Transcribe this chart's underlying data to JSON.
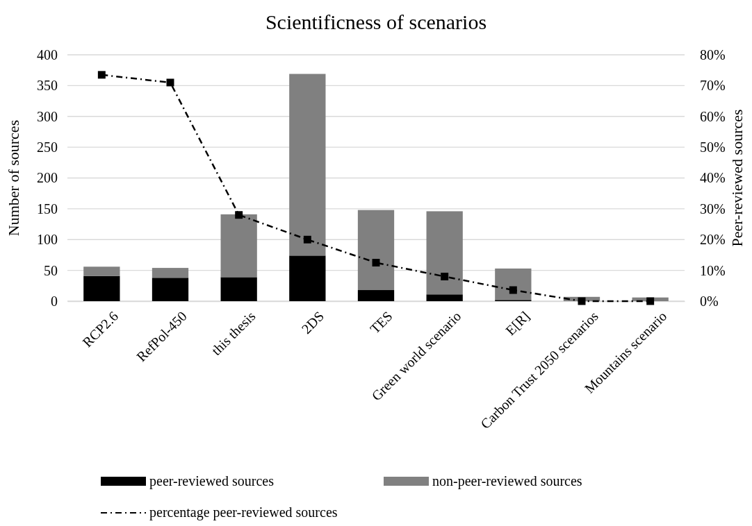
{
  "chart_data": {
    "type": "bar",
    "title": "Scientificness of scenarios",
    "ylabel": "Number of sources",
    "y2label": "Peer-reviewed sources",
    "categories": [
      "RCP2.6",
      "RefPol-450",
      "this thesis",
      "2DS",
      "TES",
      "Green world scenario",
      "E[R]",
      "Carbon Trust 2050 scenarios",
      "Mountains scenario"
    ],
    "stacked": true,
    "series": [
      {
        "name": "peer-reviewed sources",
        "color": "#000000",
        "values": [
          41,
          38,
          39,
          74,
          18,
          11,
          2,
          0,
          0
        ]
      },
      {
        "name": "non-peer-reviewed sources",
        "color": "#808080",
        "values": [
          15,
          16,
          102,
          295,
          130,
          135,
          51,
          7,
          6
        ]
      },
      {
        "name": "percentage peer-reviewed sources",
        "type": "line",
        "axis": "y2",
        "color": "#000000",
        "line_style": "dashed",
        "marker": "square",
        "values": [
          73.5,
          71,
          28,
          20,
          12.5,
          8,
          3.6,
          0,
          0
        ]
      }
    ],
    "ylim": [
      0,
      400
    ],
    "yticks": [
      0,
      50,
      100,
      150,
      200,
      250,
      300,
      350,
      400
    ],
    "y2lim": [
      0,
      80
    ],
    "y2ticks": [
      {
        "value": 0,
        "label": "0%"
      },
      {
        "value": 10,
        "label": "10%"
      },
      {
        "value": 20,
        "label": "20%"
      },
      {
        "value": 30,
        "label": "30%"
      },
      {
        "value": 40,
        "label": "40%"
      },
      {
        "value": 50,
        "label": "50%"
      },
      {
        "value": 60,
        "label": "60%"
      },
      {
        "value": 70,
        "label": "70%"
      },
      {
        "value": 80,
        "label": "80%"
      }
    ],
    "grid": "y",
    "legend": "bottom"
  }
}
